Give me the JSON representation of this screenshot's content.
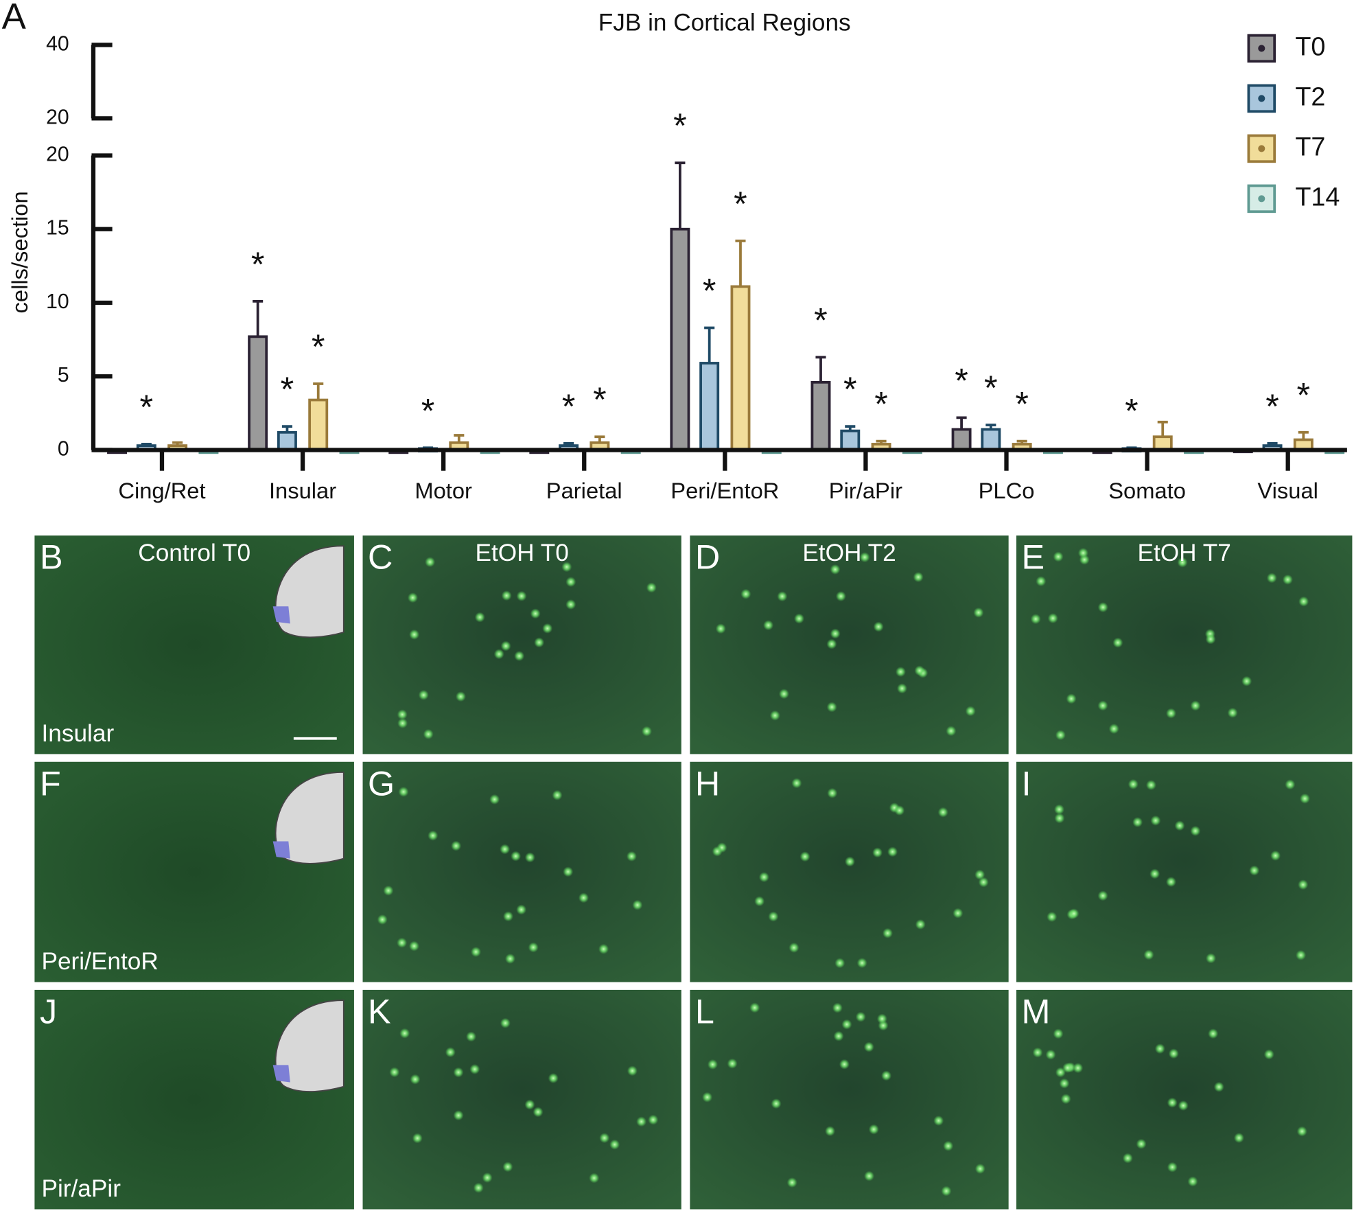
{
  "chart_data": {
    "type": "bar",
    "panel_letter": "A",
    "title": "FJB in Cortical Regions",
    "y_label": "cells/section",
    "categories": [
      "Cing/Ret",
      "Insular",
      "Motor",
      "Parietal",
      "Peri/EntoR",
      "Pir/aPir",
      "PLCo",
      "Somato",
      "Visual"
    ],
    "series": [
      {
        "name": "T0",
        "color": "#9a9a9a",
        "edge": "#2b2233",
        "values": [
          0,
          7.7,
          0,
          0,
          15.0,
          4.6,
          1.4,
          0,
          0.05
        ],
        "errors": [
          0,
          2.4,
          0,
          0,
          4.5,
          1.7,
          0.8,
          0,
          0
        ],
        "significance": [
          null,
          "*",
          null,
          null,
          "*",
          "*",
          "*",
          null,
          null
        ]
      },
      {
        "name": "T2",
        "color": "#a9c6dc",
        "edge": "#1f4a66",
        "values": [
          0.3,
          1.2,
          0.1,
          0.3,
          5.9,
          1.3,
          1.4,
          0.1,
          0.3
        ],
        "errors": [
          0.1,
          0.4,
          0.05,
          0.15,
          2.4,
          0.3,
          0.3,
          0.05,
          0.15
        ],
        "significance": [
          "*",
          "*",
          "*",
          "*",
          "*",
          "*",
          "*",
          "*",
          "*"
        ]
      },
      {
        "name": "T7",
        "color": "#f1dd9a",
        "edge": "#9a7a3a",
        "values": [
          0.3,
          3.4,
          0.5,
          0.5,
          11.1,
          0.4,
          0.4,
          0.9,
          0.7
        ],
        "errors": [
          0.2,
          1.1,
          0.5,
          0.4,
          3.1,
          0.2,
          0.2,
          1.0,
          0.5
        ],
        "significance": [
          null,
          "*",
          null,
          "*",
          "*",
          "*",
          "*",
          null,
          "*"
        ]
      },
      {
        "name": "T14",
        "color": "#d6ece6",
        "edge": "#5f9a92",
        "values": [
          0,
          0,
          0,
          0,
          0,
          0,
          0,
          0,
          0
        ],
        "errors": [
          0,
          0,
          0,
          0,
          0,
          0,
          0,
          0,
          0
        ],
        "significance": [
          null,
          null,
          null,
          null,
          null,
          null,
          null,
          null,
          null
        ]
      }
    ],
    "ylim": [
      0,
      20
    ],
    "yticks": [
      0,
      5,
      10,
      15,
      20
    ],
    "upper_ylim": [
      20,
      40
    ],
    "upper_yticks": [
      20,
      40
    ],
    "legend": "top-right"
  },
  "panels": {
    "column_titles": [
      "Control T0",
      "EtOH T0",
      "EtOH T2",
      "EtOH T7"
    ],
    "rows": [
      {
        "label": "Insular",
        "letters": [
          "B",
          "C",
          "D",
          "E"
        ]
      },
      {
        "label": "Peri/EntoR",
        "letters": [
          "F",
          "G",
          "H",
          "I"
        ]
      },
      {
        "label": "Pir/aPir",
        "letters": [
          "J",
          "K",
          "L",
          "M"
        ]
      }
    ]
  }
}
